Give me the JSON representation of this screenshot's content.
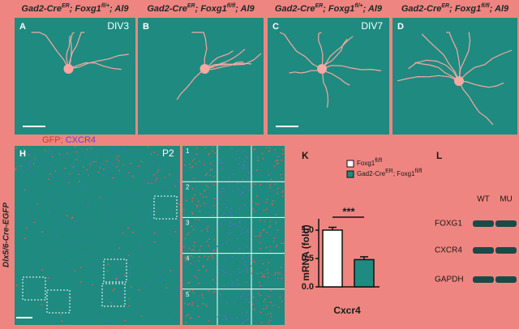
{
  "panels_top": [
    {
      "label": "A",
      "tag": "DIV3",
      "title": [
        "Gad2-Cre",
        "ER",
        "; Foxg1",
        "fl/+",
        "; Al9"
      ]
    },
    {
      "label": "B",
      "title": [
        "Gad2-Cre",
        "ER",
        "; Foxg1",
        "fl/fl",
        "; Al9"
      ]
    },
    {
      "label": "C",
      "tag": "DIV7",
      "title": [
        "Gad2-Cre",
        "ER",
        "; Foxg1",
        "fl/+",
        "; Al9"
      ]
    },
    {
      "label": "D",
      "title": [
        "Gad2-Cre",
        "ER",
        "; Foxg1",
        "fl/fl",
        "; Al9"
      ]
    }
  ],
  "panel_h": {
    "label": "H",
    "tag": "P2",
    "stain": [
      "GFP",
      "; ",
      "CXCR4"
    ],
    "side_label": "Dlx5/6-Cre-EGFP",
    "rows": [
      "1",
      "2",
      "3",
      "4",
      "5"
    ]
  },
  "panel_k": {
    "label": "K",
    "chart_data": {
      "type": "bar",
      "ylabel": "mRNA (fold)",
      "xlabel": "Cxcr4",
      "series": [
        {
          "name": [
            "Foxg1",
            "fl/fl"
          ],
          "color": "#ffffff",
          "values": [
            1.0
          ],
          "errors": [
            0.05
          ]
        },
        {
          "name": [
            "Gad2-Cre",
            "ER",
            "; Foxg1",
            "fl/fl"
          ],
          "color": "#1e8a80",
          "values": [
            0.48
          ],
          "errors": [
            0.05
          ]
        }
      ],
      "ylim": [
        0,
        1.2
      ],
      "yticks": [
        {
          "value": 0,
          "label": "0.0"
        },
        {
          "value": 0.5,
          "label": "0.5"
        },
        {
          "value": 1,
          "label": "1.0"
        }
      ],
      "annotation": "***"
    }
  },
  "panel_l": {
    "label": "L",
    "lanes": [
      "WT",
      "MU"
    ],
    "bands": [
      "FOXG1",
      "CXCR4",
      "GAPDH"
    ]
  }
}
